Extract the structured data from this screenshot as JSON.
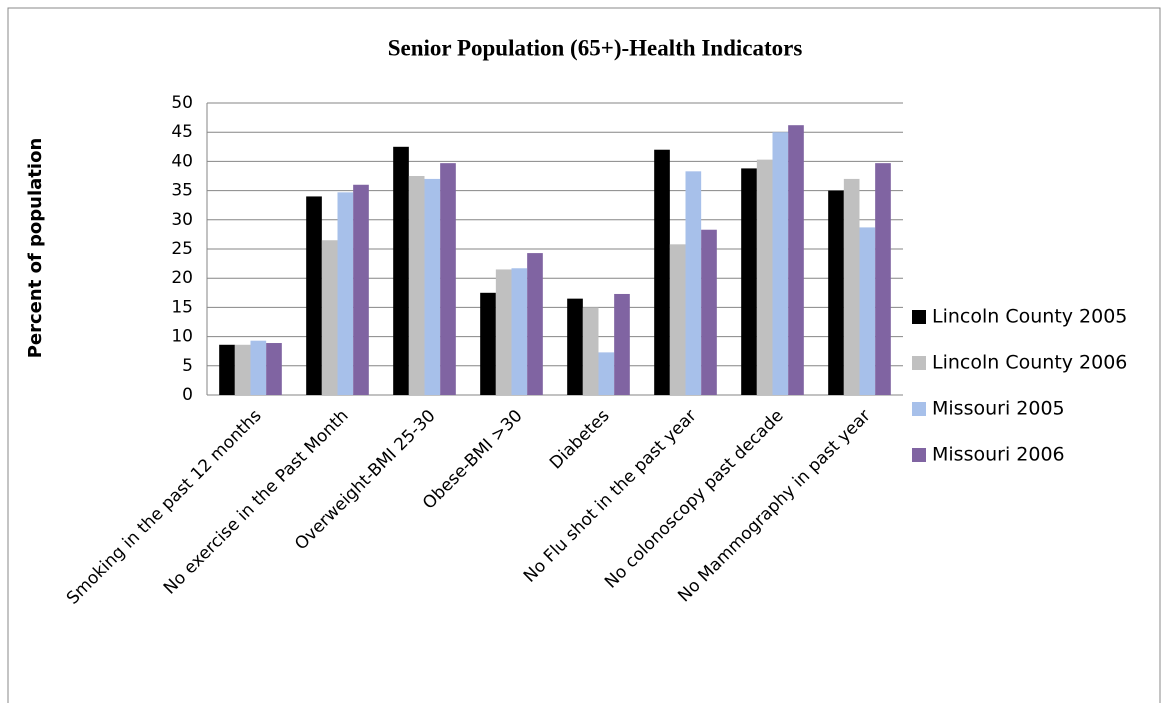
{
  "chart_data": {
    "type": "bar",
    "title": "Senior Population (65+)-Health Indicators",
    "y_label": "Percent of population",
    "categories": [
      "Smoking in the past 12 months",
      "No exercise in the Past Month",
      "Overweight-BMI 25-30",
      "Obese-BMI >30",
      "Diabetes",
      "No Flu shot in the past year",
      "No colonoscopy past decade",
      "No Mammography in past year"
    ],
    "series": [
      {
        "name": "Lincoln County 2005",
        "color": "#000000",
        "values": [
          8.6,
          34,
          42.5,
          17.5,
          16.5,
          42,
          38.8,
          35
        ]
      },
      {
        "name": "Lincoln County 2006",
        "color": "#c0c0c0",
        "values": [
          8.6,
          26.5,
          37.5,
          21.5,
          15,
          25.8,
          40.3,
          37
        ]
      },
      {
        "name": "Missouri 2005",
        "color": "#a7c0ea",
        "values": [
          9.3,
          34.7,
          37,
          21.7,
          7.3,
          38.3,
          45,
          28.7
        ]
      },
      {
        "name": "Missouri 2006",
        "color": "#8064a2",
        "values": [
          8.9,
          36,
          39.7,
          24.3,
          17.3,
          28.3,
          46.2,
          39.7
        ]
      }
    ],
    "ylim": [
      0,
      50
    ],
    "yticks": [
      0,
      5,
      10,
      15,
      20,
      25,
      30,
      35,
      40,
      45,
      50
    ],
    "grid": true,
    "legend": "right"
  }
}
